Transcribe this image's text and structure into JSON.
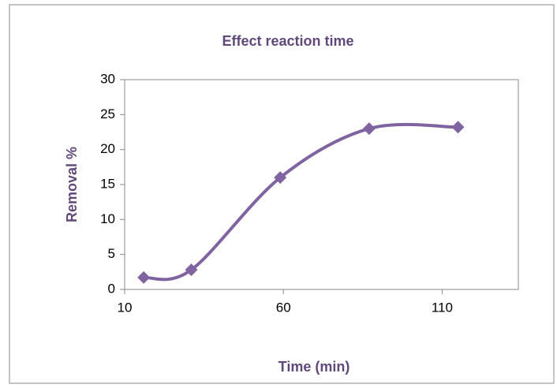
{
  "chart_data": {
    "type": "line",
    "smooth": true,
    "title": "Effect reaction time",
    "x_label": "Time (min)",
    "y_label": "Removal %",
    "x": [
      16,
      31,
      59,
      87,
      115
    ],
    "series": [
      {
        "name": "Removal %",
        "color": "#8064a2",
        "values": [
          1.7,
          2.8,
          16,
          23,
          23.2
        ]
      }
    ],
    "xlim": [
      10,
      134
    ],
    "xticks": [
      10,
      60,
      110
    ],
    "ylim": [
      0,
      30
    ],
    "yticks": [
      0,
      5,
      10,
      15,
      20,
      25,
      30
    ],
    "grid": false
  }
}
